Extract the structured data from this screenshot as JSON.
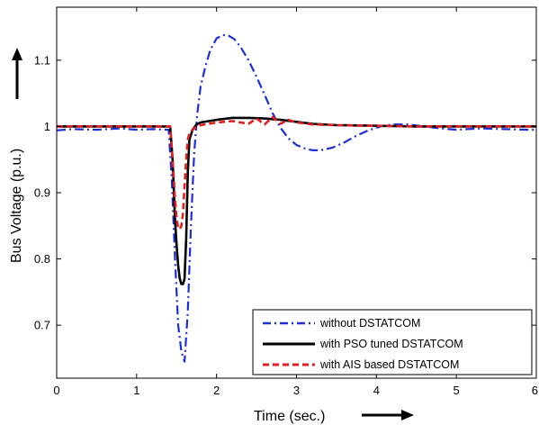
{
  "chart_data": {
    "type": "line",
    "title": "",
    "xlabel": "Time (sec.)",
    "ylabel": "Bus Voltage (p.u.)",
    "xlim": [
      0,
      6
    ],
    "ylim": [
      0.62,
      1.18
    ],
    "grid": false,
    "legend_position": "bottom-right",
    "x_ticks": [
      "0",
      "1",
      "2",
      "3",
      "4",
      "5",
      "6"
    ],
    "y_ticks": [
      "0.7",
      "0.8",
      "0.9",
      "1",
      "1.1"
    ],
    "series": [
      {
        "name": "without DSTATCOM",
        "color": "#1f2fd6",
        "style": "dash-dot",
        "x": [
          0,
          0.2,
          0.5,
          0.8,
          1.0,
          1.2,
          1.4,
          1.44,
          1.48,
          1.52,
          1.56,
          1.6,
          1.64,
          1.68,
          1.72,
          1.76,
          1.8,
          1.86,
          1.92,
          2.0,
          2.08,
          2.15,
          2.22,
          2.3,
          2.4,
          2.5,
          2.6,
          2.7,
          2.8,
          2.9,
          3.0,
          3.1,
          3.2,
          3.3,
          3.45,
          3.6,
          3.75,
          3.9,
          4.05,
          4.2,
          4.4,
          4.6,
          4.8,
          5.0,
          5.3,
          5.6,
          5.9,
          6.0
        ],
        "values": [
          0.994,
          0.996,
          0.995,
          0.997,
          0.995,
          0.996,
          0.995,
          0.92,
          0.8,
          0.7,
          0.66,
          0.645,
          0.72,
          0.85,
          0.96,
          1.02,
          1.06,
          1.09,
          1.115,
          1.133,
          1.138,
          1.137,
          1.132,
          1.12,
          1.1,
          1.075,
          1.048,
          1.02,
          0.998,
          0.982,
          0.972,
          0.967,
          0.964,
          0.964,
          0.968,
          0.976,
          0.986,
          0.994,
          1.0,
          1.003,
          1.003,
          1.0,
          0.997,
          0.995,
          0.997,
          0.996,
          0.995,
          0.995
        ]
      },
      {
        "name": "with PSO tuned DSTATCOM",
        "color": "#000000",
        "style": "solid",
        "x": [
          0,
          0.5,
          1.0,
          1.3,
          1.42,
          1.45,
          1.48,
          1.5,
          1.52,
          1.54,
          1.56,
          1.58,
          1.6,
          1.62,
          1.64,
          1.66,
          1.7,
          1.75,
          1.8,
          1.9,
          2.0,
          2.2,
          2.4,
          2.6,
          2.8,
          3.0,
          3.2,
          3.5,
          4.0,
          4.5,
          5.0,
          5.5,
          6.0
        ],
        "values": [
          1.0,
          1.0,
          1.0,
          1.0,
          1.0,
          0.95,
          0.86,
          0.82,
          0.79,
          0.77,
          0.762,
          0.762,
          0.77,
          0.83,
          0.93,
          0.98,
          0.995,
          1.003,
          1.006,
          1.008,
          1.01,
          1.013,
          1.013,
          1.012,
          1.01,
          1.007,
          1.004,
          1.002,
          1.001,
          1.0,
          1.0,
          1.0,
          1.0
        ]
      },
      {
        "name": "with AIS based DSTATCOM",
        "color": "#e02020",
        "style": "dashed",
        "x": [
          0,
          0.5,
          1.0,
          1.3,
          1.42,
          1.45,
          1.48,
          1.5,
          1.52,
          1.54,
          1.56,
          1.58,
          1.6,
          1.62,
          1.64,
          1.66,
          1.7,
          1.75,
          1.8,
          1.9,
          2.0,
          2.2,
          2.4,
          2.5,
          2.6,
          2.7,
          2.8,
          2.9,
          3.0,
          3.2,
          3.5,
          4.0,
          4.5,
          5.0,
          5.5,
          6.0
        ],
        "values": [
          1.0,
          1.0,
          1.0,
          1.0,
          1.0,
          0.95,
          0.89,
          0.86,
          0.848,
          0.845,
          0.85,
          0.87,
          0.91,
          0.95,
          0.98,
          0.99,
          0.995,
          1.0,
          1.002,
          1.004,
          1.006,
          1.008,
          1.004,
          1.012,
          1.003,
          1.014,
          1.004,
          1.01,
          1.006,
          1.003,
          1.002,
          1.001,
          1.0,
          1.0,
          1.0,
          1.0
        ]
      }
    ]
  }
}
